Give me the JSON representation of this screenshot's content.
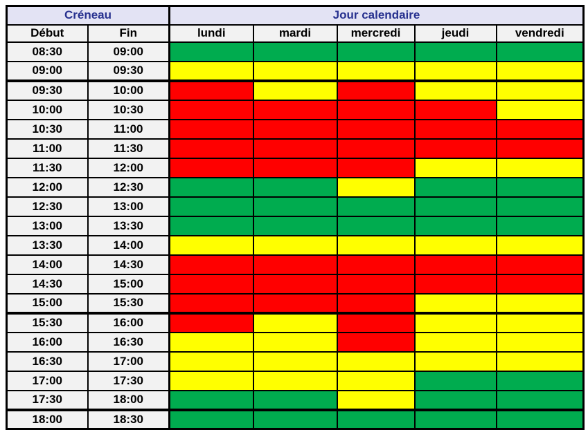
{
  "colors": {
    "green": "#00ac4f",
    "yellow": "#ffff00",
    "red": "#ff0000",
    "header_bg": "#e3e3f4",
    "header_text": "#27318f",
    "time_bg": "#f2f2f2",
    "border": "#000000"
  },
  "table": {
    "group_headers": {
      "creneau": "Créneau",
      "jour": "Jour calendaire"
    },
    "time_columns": {
      "debut": "Début",
      "fin": "Fin"
    }
  },
  "chart_data": {
    "type": "table",
    "title": "Jour calendaire",
    "ylabel": "Créneau",
    "columns": [
      "lundi",
      "mardi",
      "mercredi",
      "jeudi",
      "vendredi"
    ],
    "time_slots": [
      {
        "debut": "08:30",
        "fin": "09:00"
      },
      {
        "debut": "09:00",
        "fin": "09:30"
      },
      {
        "debut": "09:30",
        "fin": "10:00"
      },
      {
        "debut": "10:00",
        "fin": "10:30"
      },
      {
        "debut": "10:30",
        "fin": "11:00"
      },
      {
        "debut": "11:00",
        "fin": "11:30"
      },
      {
        "debut": "11:30",
        "fin": "12:00"
      },
      {
        "debut": "12:00",
        "fin": "12:30"
      },
      {
        "debut": "12:30",
        "fin": "13:00"
      },
      {
        "debut": "13:00",
        "fin": "13:30"
      },
      {
        "debut": "13:30",
        "fin": "14:00"
      },
      {
        "debut": "14:00",
        "fin": "14:30"
      },
      {
        "debut": "14:30",
        "fin": "15:00"
      },
      {
        "debut": "15:00",
        "fin": "15:30"
      },
      {
        "debut": "15:30",
        "fin": "16:00"
      },
      {
        "debut": "16:00",
        "fin": "16:30"
      },
      {
        "debut": "16:30",
        "fin": "17:00"
      },
      {
        "debut": "17:00",
        "fin": "17:30"
      },
      {
        "debut": "17:30",
        "fin": "18:00"
      },
      {
        "debut": "18:00",
        "fin": "18:30"
      }
    ],
    "cell_states": [
      [
        "green",
        "green",
        "green",
        "green",
        "green"
      ],
      [
        "yellow",
        "yellow",
        "yellow",
        "yellow",
        "yellow"
      ],
      [
        "red",
        "yellow",
        "red",
        "yellow",
        "yellow"
      ],
      [
        "red",
        "red",
        "red",
        "red",
        "yellow"
      ],
      [
        "red",
        "red",
        "red",
        "red",
        "red"
      ],
      [
        "red",
        "red",
        "red",
        "red",
        "red"
      ],
      [
        "red",
        "red",
        "red",
        "yellow",
        "yellow"
      ],
      [
        "green",
        "green",
        "yellow",
        "green",
        "green"
      ],
      [
        "green",
        "green",
        "green",
        "green",
        "green"
      ],
      [
        "green",
        "green",
        "green",
        "green",
        "green"
      ],
      [
        "yellow",
        "yellow",
        "yellow",
        "yellow",
        "yellow"
      ],
      [
        "red",
        "red",
        "red",
        "red",
        "red"
      ],
      [
        "red",
        "red",
        "red",
        "red",
        "red"
      ],
      [
        "red",
        "red",
        "red",
        "yellow",
        "yellow"
      ],
      [
        "red",
        "yellow",
        "red",
        "yellow",
        "yellow"
      ],
      [
        "yellow",
        "yellow",
        "red",
        "yellow",
        "yellow"
      ],
      [
        "yellow",
        "yellow",
        "yellow",
        "yellow",
        "yellow"
      ],
      [
        "yellow",
        "yellow",
        "yellow",
        "green",
        "green"
      ],
      [
        "green",
        "green",
        "yellow",
        "green",
        "green"
      ],
      [
        "green",
        "green",
        "green",
        "green",
        "green"
      ]
    ],
    "color_map": {
      "green": "#00ac4f",
      "yellow": "#ffff00",
      "red": "#ff0000"
    }
  }
}
